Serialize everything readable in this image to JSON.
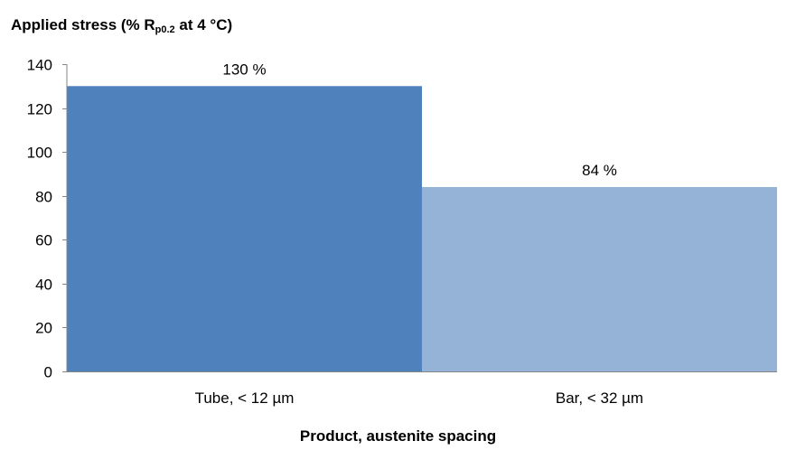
{
  "chart_data": {
    "type": "bar",
    "ylabel": {
      "prefix": "Applied stress (% R",
      "subscript": "p0.2",
      "suffix": " at 4 °C)"
    },
    "xlabel": "Product, austenite spacing",
    "categories": [
      "Tube, < 12 µm",
      "Bar, < 32 µm"
    ],
    "values": [
      130,
      84
    ],
    "data_labels": [
      "130 %",
      "84 %"
    ],
    "colors": [
      "#4f81bd",
      "#95b3d7"
    ],
    "ylim": [
      0,
      140
    ],
    "yticks": [
      0,
      20,
      40,
      60,
      80,
      100,
      120,
      140
    ],
    "grid": false,
    "legend": "none"
  }
}
